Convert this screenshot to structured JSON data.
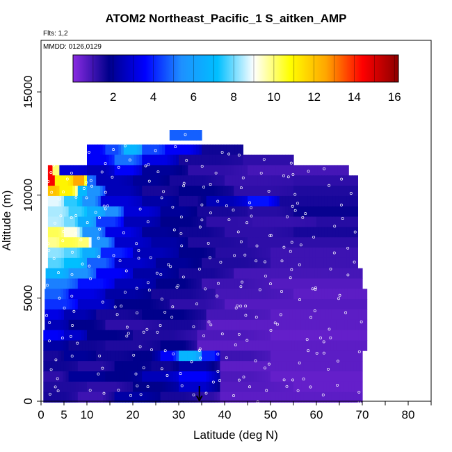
{
  "chart_data": {
    "type": "heatmap",
    "title": "ATOM2 Northeast_Pacific_1 S_aitken_AMP",
    "flights_label": "Flts: 1,2",
    "date_label": "MMDD: 0126,0129",
    "xlabel": "Latitude (deg N)",
    "ylabel": "Altitude (m)",
    "xlim": [
      0,
      85
    ],
    "ylim": [
      0,
      17500
    ],
    "x_ticks": [
      0,
      5,
      10,
      20,
      30,
      40,
      50,
      60,
      70,
      80
    ],
    "y_ticks": [
      0,
      5000,
      10000,
      15000
    ],
    "colorbar": {
      "range": [
        0,
        16.2
      ],
      "ticks": [
        2,
        4,
        6,
        8,
        10,
        12,
        14,
        16
      ],
      "colors": [
        "#8a2be2",
        "#00008b",
        "#0000ff",
        "#1e90ff",
        "#00bfff",
        "#ffffff",
        "#ffff00",
        "#ffa500",
        "#ff0000",
        "#8b0000"
      ]
    },
    "marker": {
      "x": 34.5,
      "label": "arrow"
    },
    "profiles": [
      {
        "alt": 12900,
        "segments": [
          [
            28,
            35,
            4.8
          ]
        ]
      },
      {
        "alt": 12200,
        "segments": [
          [
            10,
            14,
            3.5
          ],
          [
            14,
            18,
            4.5
          ],
          [
            18,
            22,
            6.8
          ],
          [
            22,
            27,
            4.5
          ],
          [
            27,
            35,
            3.5
          ],
          [
            35,
            44,
            1.6
          ]
        ]
      },
      {
        "alt": 11700,
        "segments": [
          [
            10,
            16,
            3.5
          ],
          [
            16,
            22,
            5.0
          ],
          [
            22,
            30,
            3.2
          ],
          [
            30,
            44,
            1.5
          ],
          [
            44,
            55,
            1.2
          ]
        ]
      },
      {
        "alt": 11200,
        "segments": [
          [
            1.5,
            2.5,
            14.5
          ],
          [
            2.5,
            4,
            10
          ],
          [
            4,
            10,
            3.0
          ],
          [
            10,
            16,
            2.5
          ],
          [
            16,
            22,
            3.5
          ],
          [
            22,
            32,
            2.0
          ],
          [
            32,
            45,
            1.2
          ],
          [
            45,
            67,
            0.9
          ]
        ]
      },
      {
        "alt": 10700,
        "segments": [
          [
            1.5,
            3,
            14.5
          ],
          [
            3,
            7,
            11
          ],
          [
            7,
            10,
            12.5
          ],
          [
            10,
            12,
            5
          ],
          [
            12,
            20,
            2.5
          ],
          [
            20,
            28,
            2.0
          ],
          [
            28,
            40,
            1.5
          ],
          [
            40,
            55,
            1.1
          ],
          [
            55,
            69,
            1.2
          ]
        ]
      },
      {
        "alt": 10200,
        "segments": [
          [
            1.5,
            4,
            12
          ],
          [
            4,
            8,
            11
          ],
          [
            8,
            10,
            7
          ],
          [
            10,
            14,
            5.5
          ],
          [
            14,
            22,
            2.5
          ],
          [
            22,
            30,
            1.5
          ],
          [
            30,
            42,
            1.8
          ],
          [
            42,
            55,
            1.2
          ],
          [
            55,
            69,
            1.4
          ]
        ]
      },
      {
        "alt": 9700,
        "segments": [
          [
            1.5,
            5,
            8.8
          ],
          [
            5,
            9,
            7.5
          ],
          [
            9,
            13,
            5.5
          ],
          [
            13,
            22,
            3
          ],
          [
            22,
            30,
            2.2
          ],
          [
            30,
            36,
            1.5
          ],
          [
            36,
            45,
            2.5
          ],
          [
            45,
            52,
            3.8
          ],
          [
            52,
            69,
            1.5
          ]
        ]
      },
      {
        "alt": 9200,
        "segments": [
          [
            1.5,
            6,
            8.4
          ],
          [
            6,
            10,
            7.6
          ],
          [
            10,
            14,
            6.5
          ],
          [
            14,
            18,
            5.4
          ],
          [
            18,
            26,
            3
          ],
          [
            26,
            34,
            2
          ],
          [
            34,
            45,
            1.5
          ],
          [
            45,
            55,
            1.3
          ],
          [
            55,
            69,
            1.7
          ]
        ]
      },
      {
        "alt": 8700,
        "segments": [
          [
            1.5,
            5,
            8.5
          ],
          [
            5,
            8,
            8.0
          ],
          [
            8,
            12,
            6.5
          ],
          [
            12,
            18,
            4.3
          ],
          [
            18,
            26,
            2.5
          ],
          [
            26,
            36,
            1.8
          ],
          [
            36,
            46,
            1.2
          ],
          [
            46,
            60,
            1.1
          ],
          [
            60,
            69,
            1.3
          ]
        ]
      },
      {
        "alt": 8200,
        "segments": [
          [
            1.5,
            5,
            10.2
          ],
          [
            5,
            9,
            9.2
          ],
          [
            9,
            14,
            5.5
          ],
          [
            14,
            22,
            3.2
          ],
          [
            22,
            30,
            2.0
          ],
          [
            30,
            40,
            1.6
          ],
          [
            40,
            55,
            1.2
          ],
          [
            55,
            69,
            1.5
          ]
        ]
      },
      {
        "alt": 7700,
        "segments": [
          [
            1.5,
            4,
            9.8
          ],
          [
            4,
            8,
            10.3
          ],
          [
            8,
            11,
            10.0
          ],
          [
            11,
            16,
            5.5
          ],
          [
            16,
            24,
            2.8
          ],
          [
            24,
            32,
            2.2
          ],
          [
            32,
            45,
            1.4
          ],
          [
            45,
            69,
            1.2
          ]
        ]
      },
      {
        "alt": 7200,
        "segments": [
          [
            1.5,
            5,
            8.2
          ],
          [
            5,
            9,
            7.8
          ],
          [
            9,
            13,
            6.5
          ],
          [
            13,
            20,
            4.0
          ],
          [
            20,
            30,
            2.5
          ],
          [
            30,
            38,
            1.8
          ],
          [
            38,
            50,
            1.3
          ],
          [
            50,
            69,
            1.0
          ]
        ]
      },
      {
        "alt": 6700,
        "segments": [
          [
            1.5,
            5,
            7.8
          ],
          [
            5,
            10,
            7.2
          ],
          [
            10,
            16,
            4.8
          ],
          [
            16,
            25,
            2.8
          ],
          [
            25,
            35,
            2.0
          ],
          [
            35,
            50,
            1.4
          ],
          [
            50,
            69,
            1.0
          ]
        ]
      },
      {
        "alt": 6200,
        "segments": [
          [
            1,
            6,
            6.8
          ],
          [
            6,
            12,
            5.5
          ],
          [
            12,
            20,
            3.5
          ],
          [
            20,
            30,
            2.2
          ],
          [
            30,
            42,
            1.5
          ],
          [
            42,
            70,
            0.9
          ]
        ]
      },
      {
        "alt": 5700,
        "segments": [
          [
            1,
            8,
            5.2
          ],
          [
            8,
            16,
            3.8
          ],
          [
            16,
            25,
            2.5
          ],
          [
            25,
            35,
            1.8
          ],
          [
            35,
            50,
            1.0
          ],
          [
            50,
            70,
            0.7
          ]
        ]
      },
      {
        "alt": 5200,
        "segments": [
          [
            0.8,
            6,
            4.8
          ],
          [
            6,
            14,
            3.2
          ],
          [
            14,
            24,
            2.2
          ],
          [
            24,
            38,
            1.5
          ],
          [
            38,
            55,
            0.9
          ],
          [
            55,
            71,
            0.6
          ]
        ]
      },
      {
        "alt": 4700,
        "segments": [
          [
            0.8,
            8,
            4.2
          ],
          [
            8,
            16,
            2.8
          ],
          [
            16,
            28,
            1.8
          ],
          [
            28,
            40,
            1.2
          ],
          [
            40,
            71,
            0.7
          ]
        ]
      },
      {
        "alt": 4200,
        "segments": [
          [
            0.8,
            5,
            3.2
          ],
          [
            5,
            12,
            2.4
          ],
          [
            12,
            22,
            1.5
          ],
          [
            22,
            36,
            1.8
          ],
          [
            36,
            50,
            0.9
          ],
          [
            50,
            71,
            0.6
          ]
        ]
      },
      {
        "alt": 3700,
        "segments": [
          [
            0.8,
            6,
            2.5
          ],
          [
            6,
            14,
            1.8
          ],
          [
            14,
            26,
            1.2
          ],
          [
            26,
            36,
            1.5
          ],
          [
            36,
            71,
            0.6
          ]
        ]
      },
      {
        "alt": 3200,
        "segments": [
          [
            0.5,
            5,
            3.5
          ],
          [
            5,
            10,
            2.8
          ],
          [
            10,
            20,
            1.8
          ],
          [
            20,
            34,
            1.4
          ],
          [
            34,
            50,
            0.8
          ],
          [
            50,
            71,
            0.5
          ]
        ]
      },
      {
        "alt": 2700,
        "segments": [
          [
            0.5,
            6,
            2.2
          ],
          [
            6,
            14,
            1.6
          ],
          [
            14,
            26,
            1.4
          ],
          [
            26,
            34,
            1.8
          ],
          [
            34,
            71,
            0.6
          ]
        ]
      },
      {
        "alt": 2200,
        "segments": [
          [
            0.5,
            5,
            1.5
          ],
          [
            5,
            12,
            2.0
          ],
          [
            12,
            20,
            1.6
          ],
          [
            20,
            26,
            1.8
          ],
          [
            26,
            30,
            3.5
          ],
          [
            30,
            35,
            6.8
          ],
          [
            35,
            39,
            4.0
          ],
          [
            39,
            50,
            1.0
          ],
          [
            50,
            70,
            0.6
          ]
        ]
      },
      {
        "alt": 1700,
        "segments": [
          [
            0.5,
            8,
            1.6
          ],
          [
            8,
            16,
            1.3
          ],
          [
            16,
            24,
            1.8
          ],
          [
            24,
            30,
            1.6
          ],
          [
            30,
            39,
            2.2
          ],
          [
            39,
            70,
            0.6
          ]
        ]
      },
      {
        "alt": 1200,
        "segments": [
          [
            0.5,
            6,
            1.2
          ],
          [
            6,
            14,
            2.0
          ],
          [
            14,
            22,
            1.8
          ],
          [
            22,
            30,
            2.5
          ],
          [
            30,
            39,
            3.5
          ],
          [
            39,
            50,
            0.8
          ],
          [
            50,
            70,
            0.5
          ]
        ]
      },
      {
        "alt": 700,
        "segments": [
          [
            0.5,
            10,
            1.4
          ],
          [
            10,
            20,
            1.2
          ],
          [
            20,
            30,
            1.8
          ],
          [
            30,
            39,
            2.8
          ],
          [
            39,
            55,
            0.7
          ],
          [
            55,
            70,
            0.5
          ]
        ]
      },
      {
        "alt": 200,
        "segments": [
          [
            0.5,
            8,
            1.5
          ],
          [
            8,
            16,
            1.0
          ],
          [
            16,
            26,
            2.2
          ],
          [
            26,
            34,
            1.5
          ],
          [
            34,
            39,
            1.2
          ],
          [
            39,
            70,
            0.6
          ]
        ]
      }
    ]
  }
}
